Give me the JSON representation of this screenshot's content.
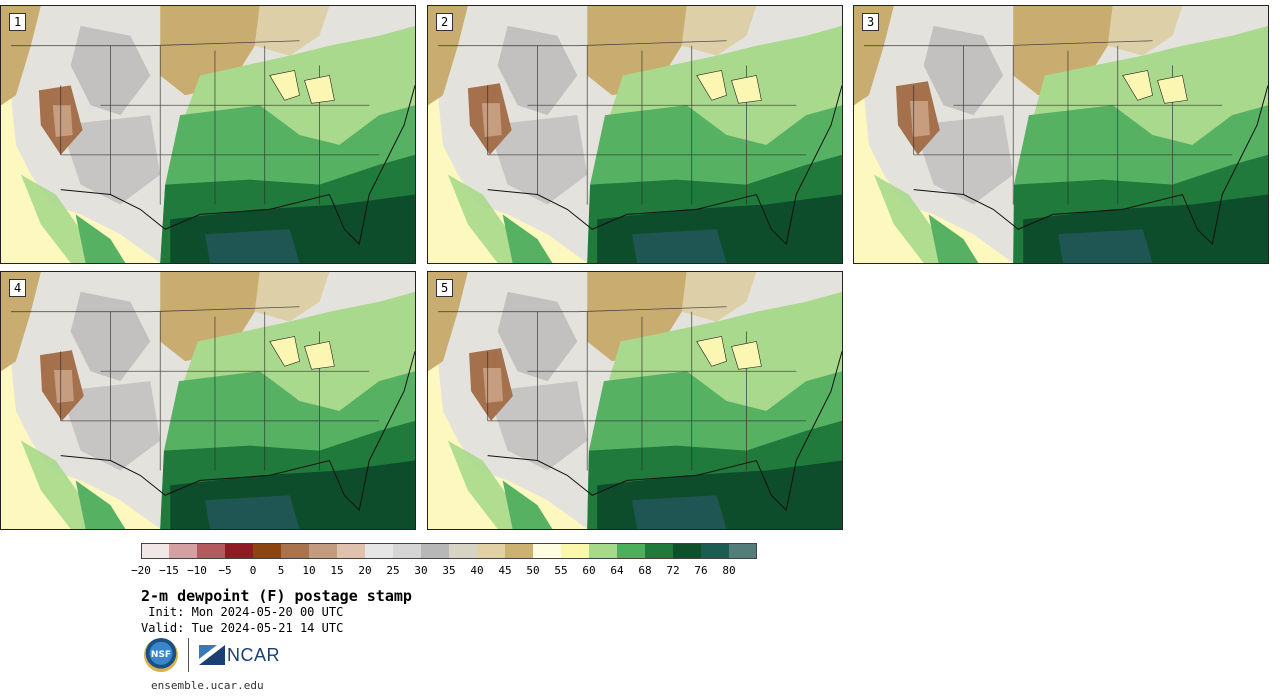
{
  "panels": [
    {
      "label": "1",
      "variant": 0.0
    },
    {
      "label": "2",
      "variant": 0.35
    },
    {
      "label": "3",
      "variant": 0.7
    },
    {
      "label": "4",
      "variant": 0.2
    },
    {
      "label": "5",
      "variant": 0.55
    }
  ],
  "colorbar": {
    "colors": [
      "#f3e6e6",
      "#d4a1a3",
      "#b25a5e",
      "#8f1c24",
      "#8b4513",
      "#a7744f",
      "#c39b7f",
      "#dfc2ae",
      "#e6e6e6",
      "#d5d5d5",
      "#b7b7b7",
      "#d8d4c4",
      "#e1d1a5",
      "#cbb272",
      "#fdfde2",
      "#fbf8ad",
      "#a6d98b",
      "#4caf5b",
      "#1f7a3b",
      "#0f4f29",
      "#1e5c52",
      "#537d7a"
    ],
    "tick_labels": [
      "−20",
      "−15",
      "−10",
      "−5",
      "0",
      "5",
      "10",
      "15",
      "20",
      "25",
      "30",
      "35",
      "40",
      "45",
      "50",
      "55",
      "60",
      "64",
      "68",
      "72",
      "76",
      "80"
    ]
  },
  "title": "2-m dewpoint (F) postage stamp",
  "init_label": " Init: Mon 2024-05-20 00 UTC",
  "valid_label": "Valid: Tue 2024-05-21 14 UTC",
  "logos": {
    "nsf": "NSF",
    "ncar": "NCAR"
  },
  "website": "ensemble.ucar.edu"
}
